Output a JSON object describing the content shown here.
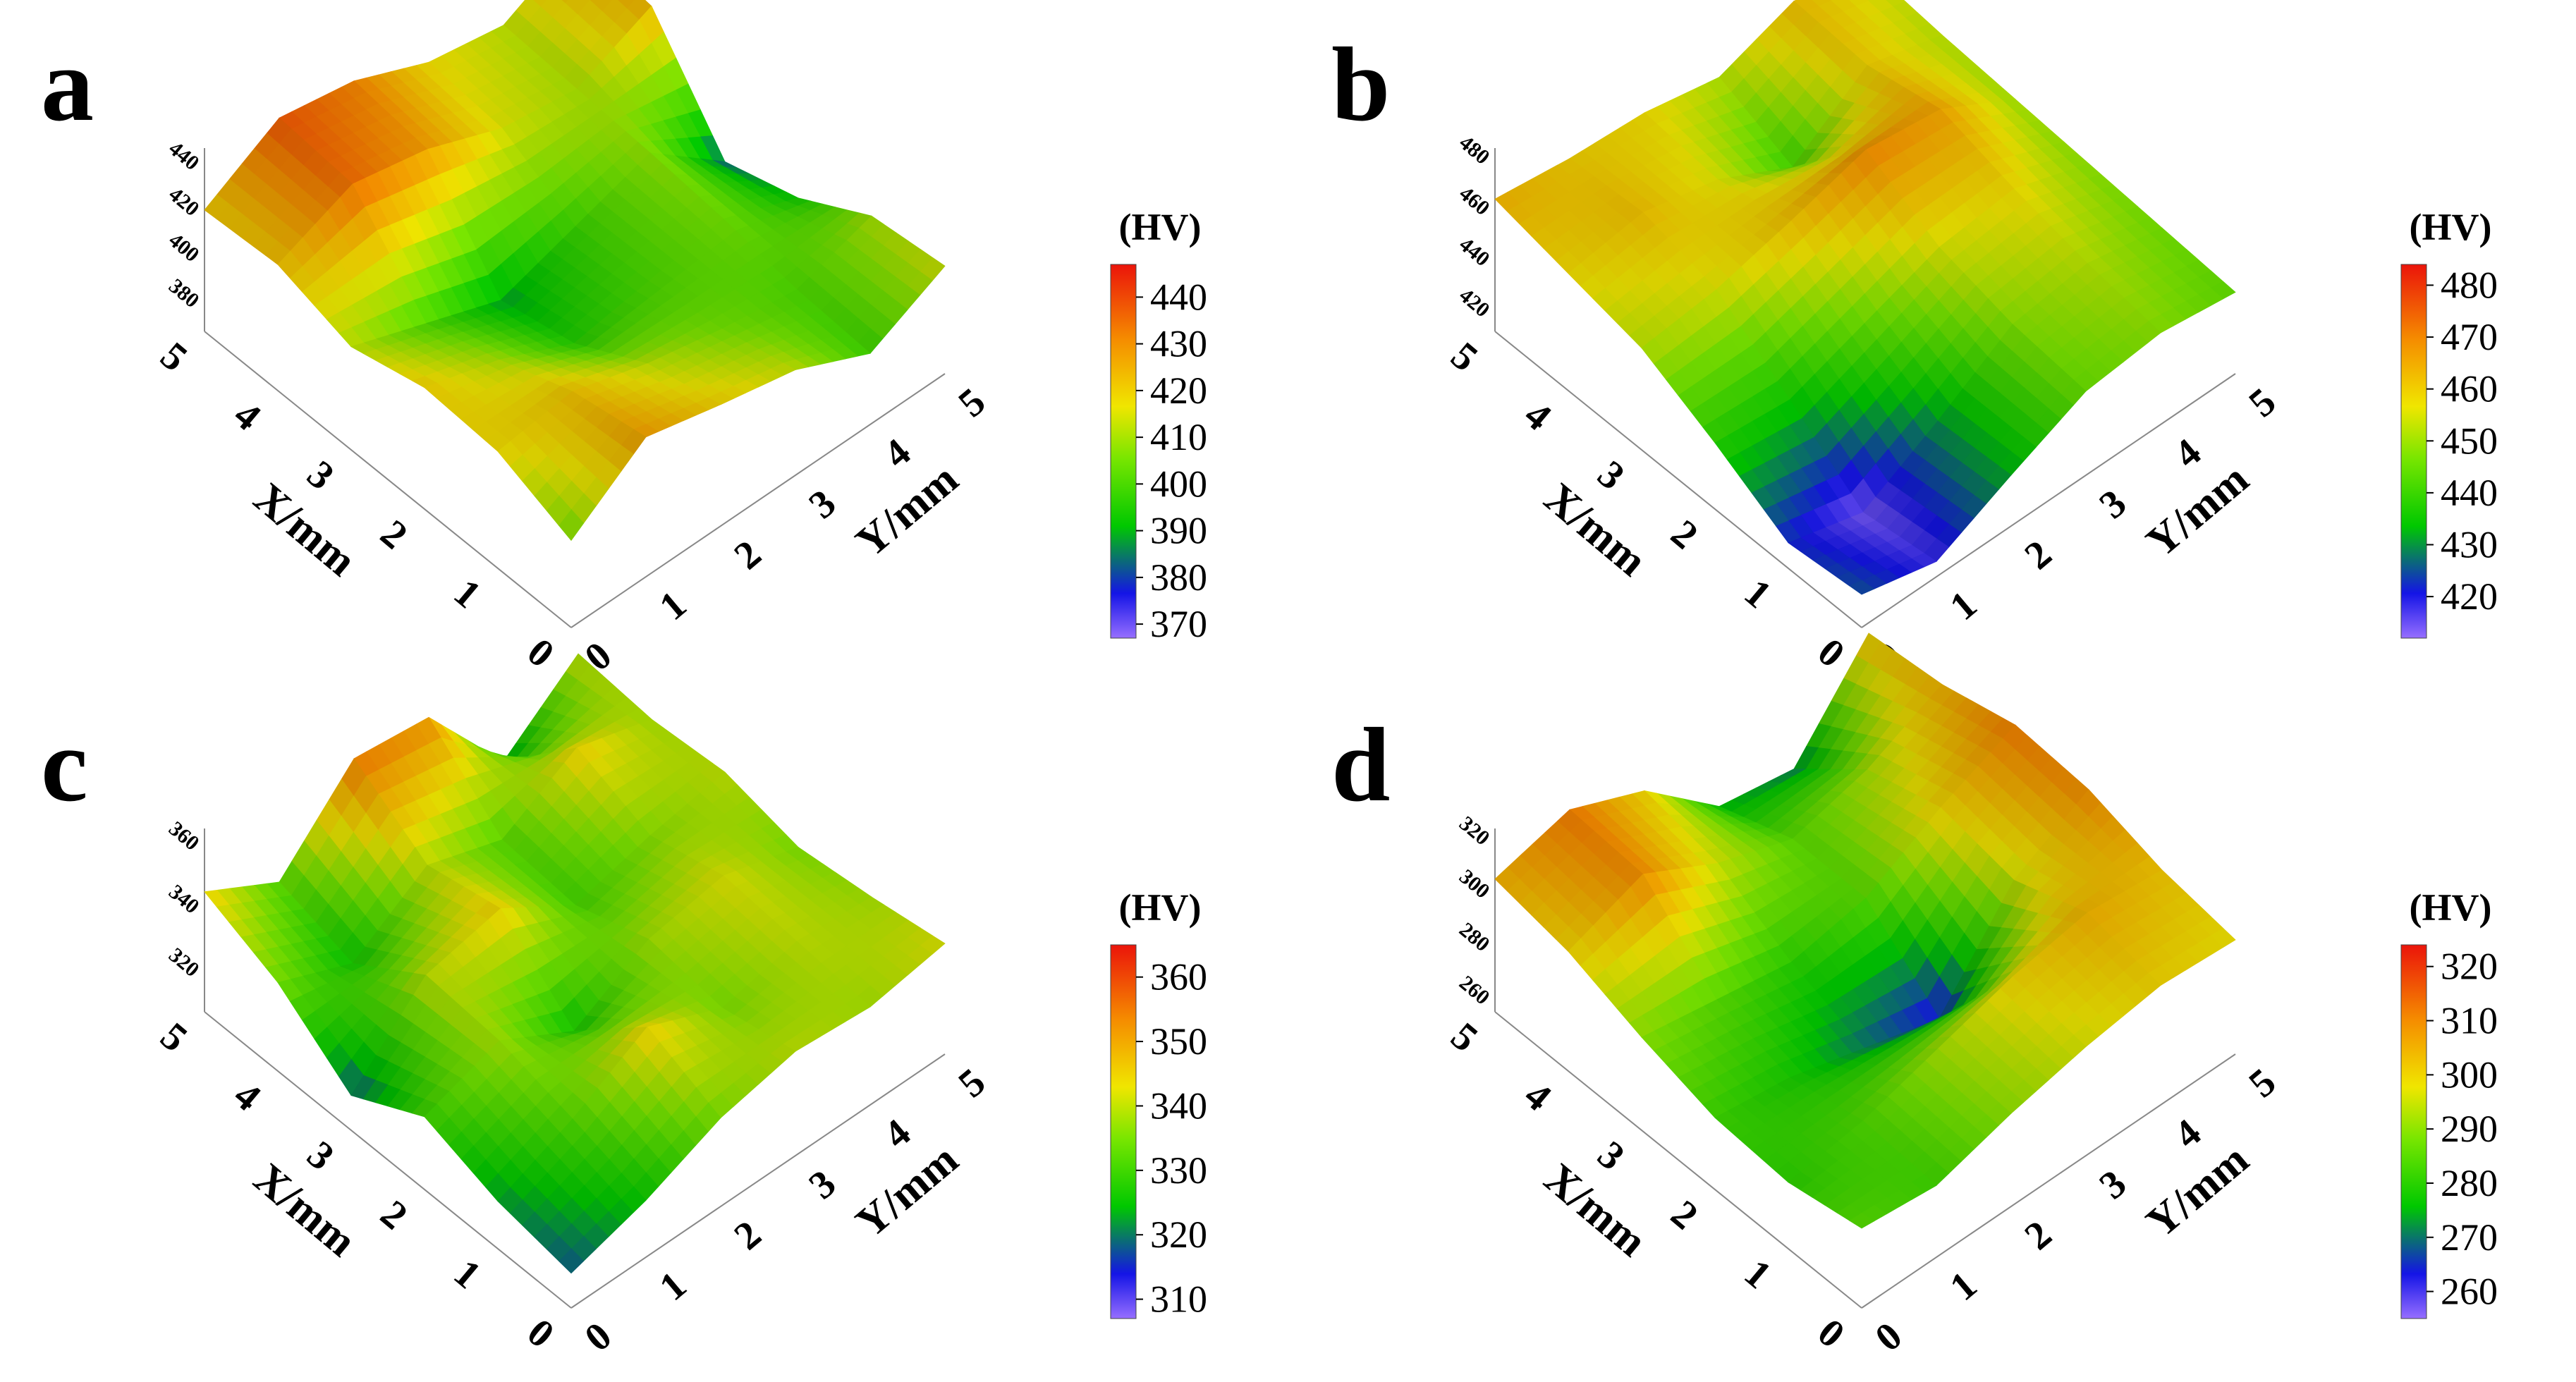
{
  "figure": {
    "panels": [
      "a",
      "b",
      "c",
      "d"
    ]
  },
  "chart_data": [
    {
      "panel": "a",
      "type": "surface",
      "xlabel": "X/mm",
      "ylabel": "Y/mm",
      "x_ticks": [
        "0",
        "1",
        "2",
        "3",
        "4",
        "5"
      ],
      "y_ticks": [
        "0",
        "1",
        "2",
        "3",
        "4",
        "5"
      ],
      "z_ticks": [
        "380",
        "400",
        "420",
        "440"
      ],
      "colorbar_title": "(HV)",
      "colorbar_ticks": [
        "440",
        "430",
        "420",
        "410",
        "400",
        "390",
        "380",
        "370"
      ],
      "colorbar_range": [
        367,
        447
      ],
      "x": [
        0,
        1,
        2,
        3,
        4,
        5
      ],
      "y": [
        0,
        1,
        2,
        3,
        4,
        5
      ],
      "z": [
        [
          405,
          428,
          420,
          413,
          398,
          414
        ],
        [
          418,
          422,
          412,
          405,
          400,
          410
        ],
        [
          420,
          410,
          395,
          400,
          405,
          392
        ],
        [
          412,
          400,
          388,
          398,
          408,
          382
        ],
        [
          422,
          435,
          428,
          415,
          410,
          424
        ],
        [
          420,
          438,
          432,
          418,
          412,
          428
        ]
      ]
    },
    {
      "panel": "b",
      "type": "surface",
      "xlabel": "X/mm",
      "ylabel": "Y/mm",
      "x_ticks": [
        "0",
        "1",
        "2",
        "3",
        "4",
        "5"
      ],
      "y_ticks": [
        "0",
        "1",
        "2",
        "3",
        "4",
        "5"
      ],
      "z_ticks": [
        "420",
        "440",
        "460",
        "480"
      ],
      "colorbar_title": "(HV)",
      "colorbar_ticks": [
        "480",
        "470",
        "460",
        "450",
        "440",
        "430",
        "420"
      ],
      "colorbar_range": [
        412,
        484
      ],
      "x": [
        0,
        1,
        2,
        3,
        4,
        5
      ],
      "y": [
        0,
        1,
        2,
        3,
        4,
        5
      ],
      "z": [
        [
          425,
          418,
          432,
          445,
          448,
          444
        ],
        [
          422,
          414,
          430,
          448,
          452,
          446
        ],
        [
          438,
          435,
          445,
          455,
          458,
          448
        ],
        [
          452,
          455,
          462,
          470,
          466,
          450
        ],
        [
          458,
          462,
          455,
          440,
          460,
          452
        ],
        [
          464,
          460,
          458,
          452,
          462,
          455
        ]
      ]
    },
    {
      "panel": "c",
      "type": "surface",
      "xlabel": "X/mm",
      "ylabel": "Y/mm",
      "x_ticks": [
        "0",
        "1",
        "2",
        "3",
        "4",
        "5"
      ],
      "y_ticks": [
        "0",
        "1",
        "2",
        "3",
        "4",
        "5"
      ],
      "z_ticks": [
        "320",
        "340",
        "360"
      ],
      "colorbar_title": "(HV)",
      "colorbar_ticks": [
        "360",
        "350",
        "340",
        "330",
        "320",
        "310"
      ],
      "colorbar_range": [
        307,
        365
      ],
      "x": [
        0,
        1,
        2,
        3,
        4,
        5
      ],
      "y": [
        0,
        1,
        2,
        3,
        4,
        5
      ],
      "z": [
        [
          318,
          325,
          335,
          340,
          338,
          342
        ],
        [
          322,
          332,
          345,
          335,
          340,
          338
        ],
        [
          330,
          338,
          325,
          338,
          342,
          335
        ],
        [
          318,
          340,
          345,
          330,
          336,
          340
        ],
        [
          335,
          325,
          340,
          332,
          345,
          338
        ],
        [
          345,
          332,
          355,
          352,
          322,
          340
        ]
      ]
    },
    {
      "panel": "d",
      "type": "surface",
      "xlabel": "X/mm",
      "ylabel": "Y/mm",
      "x_ticks": [
        "0",
        "1",
        "2",
        "3",
        "4",
        "5"
      ],
      "y_ticks": [
        "0",
        "1",
        "2",
        "3",
        "4",
        "5"
      ],
      "z_ticks": [
        "260",
        "280",
        "300",
        "320"
      ],
      "colorbar_title": "(HV)",
      "colorbar_ticks": [
        "320",
        "310",
        "300",
        "290",
        "280",
        "270",
        "260"
      ],
      "colorbar_range": [
        255,
        324
      ],
      "x": [
        0,
        1,
        2,
        3,
        4,
        5
      ],
      "y": [
        0,
        1,
        2,
        3,
        4,
        5
      ],
      "z": [
        [
          285,
          282,
          290,
          296,
          300,
          298
        ],
        [
          280,
          284,
          292,
          300,
          305,
          302
        ],
        [
          282,
          278,
          270,
          262,
          295,
          310
        ],
        [
          290,
          285,
          280,
          285,
          300,
          312
        ],
        [
          300,
          310,
          295,
          285,
          292,
          305
        ],
        [
          305,
          312,
          300,
          275,
          270,
          302
        ]
      ]
    }
  ]
}
